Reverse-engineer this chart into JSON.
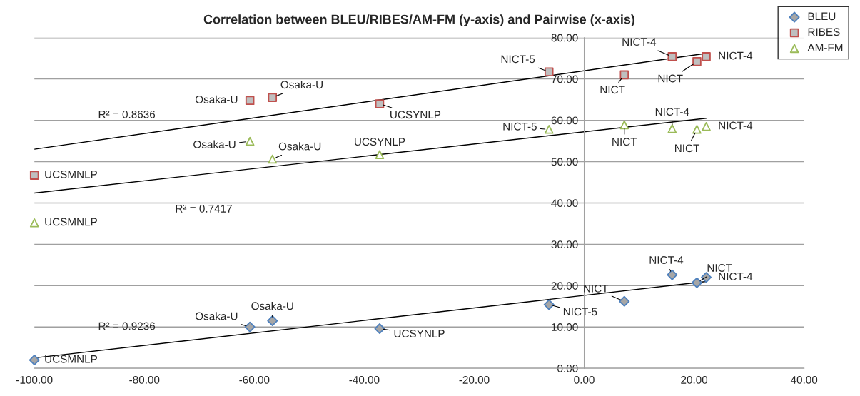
{
  "chart_data": {
    "type": "scatter",
    "title": "Correlation between BLEU/RIBES/AM-FM (y-axis) and Pairwise (x-axis)",
    "series": [
      {
        "name": "BLEU",
        "color": "#4f81bd",
        "marker": "diamond",
        "x": [
          -100,
          -60.8,
          -56.7,
          -37.2,
          -6.4,
          7.3,
          16.0,
          20.5,
          22.2
        ],
        "values": [
          2.0,
          10.0,
          11.5,
          9.6,
          15.4,
          16.2,
          22.6,
          20.7,
          22.0
        ]
      },
      {
        "name": "RIBES",
        "color": "#c0504d",
        "marker": "square",
        "x": [
          -100,
          -60.8,
          -56.7,
          -37.2,
          -6.4,
          7.3,
          16.0,
          20.5,
          22.2
        ],
        "values": [
          46.7,
          64.8,
          65.5,
          64.0,
          71.7,
          71.0,
          75.4,
          74.2,
          75.4
        ]
      },
      {
        "name": "AM-FM",
        "color": "#9bbb59",
        "marker": "triangle",
        "x": [
          -100,
          -60.8,
          -56.7,
          -37.2,
          -6.4,
          7.3,
          16.0,
          20.5,
          22.2
        ],
        "values": [
          35.2,
          54.9,
          50.6,
          51.7,
          57.8,
          58.9,
          58.0,
          57.8,
          58.5
        ]
      },
      {
        "type": "line",
        "color": "#000000",
        "marker": "none",
        "x": [
          -100,
          22.2
        ],
        "values": [
          2.5,
          21.0
        ]
      },
      {
        "type": "line",
        "color": "#000000",
        "marker": "none",
        "x": [
          -100,
          22.2
        ],
        "values": [
          53.0,
          76.2
        ]
      },
      {
        "type": "line",
        "color": "#000000",
        "marker": "none",
        "x": [
          -100,
          22.2
        ],
        "values": [
          42.4,
          60.5
        ]
      }
    ],
    "annotations": [
      {
        "text": "UCSMNLP",
        "x": -100,
        "y": 2.0
      },
      {
        "text": "Osaka-U",
        "x": -60.8,
        "y": 10.0
      },
      {
        "text": "Osaka-U",
        "x": -56.7,
        "y": 11.5
      },
      {
        "text": "UCSYNLP",
        "x": -37.2,
        "y": 9.6
      },
      {
        "text": "NICT-5",
        "x": -6.4,
        "y": 15.4
      },
      {
        "text": "NICT",
        "x": 7.3,
        "y": 16.2
      },
      {
        "text": "NICT-4",
        "x": 16.0,
        "y": 22.6
      },
      {
        "text": "NICT",
        "x": 20.5,
        "y": 20.7
      },
      {
        "text": "NICT-4",
        "x": 22.2,
        "y": 22.0
      },
      {
        "text": "UCSMNLP",
        "x": -100,
        "y": 46.7
      },
      {
        "text": "Osaka-U",
        "x": -60.8,
        "y": 64.8
      },
      {
        "text": "Osaka-U",
        "x": -56.7,
        "y": 65.5
      },
      {
        "text": "UCSYNLP",
        "x": -37.2,
        "y": 64.0
      },
      {
        "text": "NICT-5",
        "x": -6.4,
        "y": 71.7
      },
      {
        "text": "NICT",
        "x": 7.3,
        "y": 71.0
      },
      {
        "text": "NICT-4",
        "x": 16.0,
        "y": 75.4
      },
      {
        "text": "NICT",
        "x": 20.5,
        "y": 74.2
      },
      {
        "text": "NICT-4",
        "x": 22.2,
        "y": 75.4
      },
      {
        "text": "UCSMNLP",
        "x": -100,
        "y": 35.2
      },
      {
        "text": "Osaka-U",
        "x": -60.8,
        "y": 54.9
      },
      {
        "text": "Osaka-U",
        "x": -56.7,
        "y": 50.6
      },
      {
        "text": "UCSYNLP",
        "x": -37.2,
        "y": 51.7
      },
      {
        "text": "NICT-5",
        "x": -6.4,
        "y": 57.8
      },
      {
        "text": "NICT",
        "x": 7.3,
        "y": 58.9
      },
      {
        "text": "NICT-4",
        "x": 16.0,
        "y": 58.0
      },
      {
        "text": "NICT",
        "x": 20.5,
        "y": 57.8
      },
      {
        "text": "NICT-4",
        "x": 22.2,
        "y": 58.5
      },
      "R² = 0.9236",
      "R² = 0.8636",
      "R² = 0.7417"
    ],
    "xlim": [
      -100,
      40
    ],
    "xticks": [
      {
        "value": -100,
        "label": "-100.00"
      },
      {
        "value": -80,
        "label": "-80.00"
      },
      {
        "value": -60,
        "label": "-60.00"
      },
      {
        "value": -40,
        "label": "-40.00"
      },
      {
        "value": -20,
        "label": "-20.00"
      },
      {
        "value": 0,
        "label": "0.00"
      },
      {
        "value": 20,
        "label": "20.00"
      },
      {
        "value": 40,
        "label": "40.00"
      }
    ],
    "ylim": [
      0,
      80
    ],
    "yticks": [
      {
        "value": 0,
        "label": "0.00"
      },
      {
        "value": 10,
        "label": "10.00"
      },
      {
        "value": 20,
        "label": "20.00"
      },
      {
        "value": 30,
        "label": "30.00"
      },
      {
        "value": 40,
        "label": "40.00"
      },
      {
        "value": 50,
        "label": "50.00"
      },
      {
        "value": 60,
        "label": "60.00"
      },
      {
        "value": 70,
        "label": "70.00"
      },
      {
        "value": 80,
        "label": "80.00"
      }
    ],
    "grid": "y",
    "legend": "top right"
  }
}
